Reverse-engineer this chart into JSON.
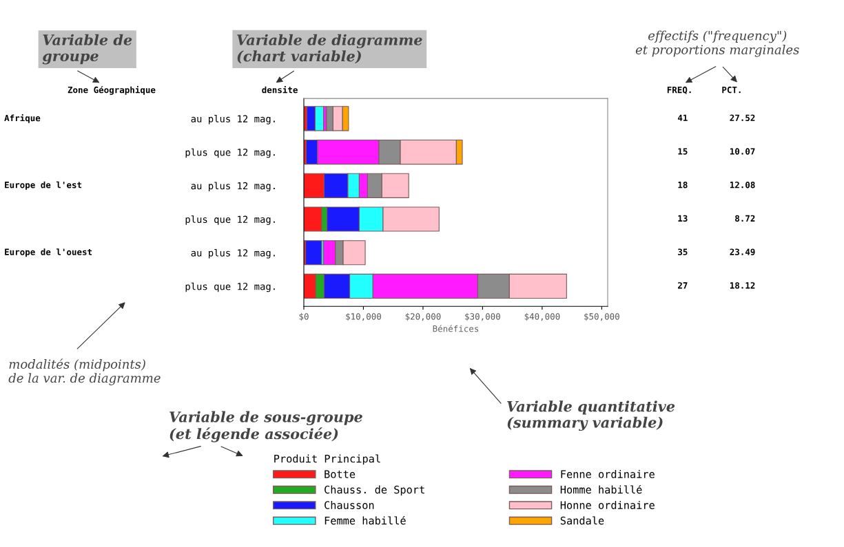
{
  "chart_data": {
    "type": "bar",
    "orientation": "horizontal",
    "stacked": true,
    "categories": [
      "au plus 12 mag.",
      "plus que 12 mag.",
      "au plus 12 mag.",
      "plus que 12 mag.",
      "au plus 12 mag.",
      "plus que 12 mag."
    ],
    "series": [
      {
        "name": "Botte",
        "color": "#ff1a1a",
        "values": [
          500,
          400,
          3400,
          3000,
          300,
          2000
        ]
      },
      {
        "name": "Chauss. de Sport",
        "color": "#22aa22",
        "values": [
          null,
          null,
          null,
          900,
          null,
          1400
        ]
      },
      {
        "name": "Chausson",
        "color": "#1a1aff",
        "values": [
          1400,
          1900,
          4000,
          5400,
          2700,
          4300
        ]
      },
      {
        "name": "Femme habillé",
        "color": "#22ffff",
        "values": [
          1400,
          null,
          1900,
          4000,
          300,
          3900
        ]
      },
      {
        "name": "Fenne ordinaire",
        "color": "#ff1aff",
        "values": [
          500,
          10300,
          1400,
          null,
          2000,
          17600
        ]
      },
      {
        "name": "Homme habillé",
        "color": "#8c8c8c",
        "values": [
          1100,
          3600,
          2400,
          null,
          1300,
          5300
        ]
      },
      {
        "name": "Honne ordinaire",
        "color": "#ffc0cb",
        "values": [
          1600,
          9400,
          4500,
          9400,
          3700,
          9600
        ]
      },
      {
        "name": "Sandale",
        "color": "#ffa500",
        "values": [
          1000,
          1000,
          null,
          null,
          null,
          null
        ]
      }
    ],
    "xlim": [
      0,
      51000
    ],
    "xticks": [
      {
        "value": 0,
        "label": "$0"
      },
      {
        "value": 10000,
        "label": "$10,000"
      },
      {
        "value": 20000,
        "label": "$20,000"
      },
      {
        "value": 30000,
        "label": "$30,000"
      },
      {
        "value": 40000,
        "label": "$40,000"
      },
      {
        "value": 50000,
        "label": "$50,000"
      }
    ],
    "xlabel": "Bénéfices",
    "legend_title": "Produit Principal",
    "legend": "bottom",
    "grid": false,
    "annotations": [
      "Zone Géographique",
      "densite",
      "FREQ.",
      "PCT.",
      "Afrique",
      "Europe de l'est",
      "Europe de l'ouest",
      "41",
      "15",
      "18",
      "13",
      "35",
      "27",
      "27.52",
      "10.07",
      "12.08",
      "8.72",
      "23.49",
      "18.12",
      "Variable de\ngroupe",
      "Variable de diagramme\n(chart variable)",
      "effectifs (\"frequency\")\net proportions marginales",
      "modalités (midpoints)\nde la var. de diagramme",
      "Variable de sous-groupe\n(et légende associée)",
      "Variable quantitative\n(summary variable)"
    ]
  }
}
